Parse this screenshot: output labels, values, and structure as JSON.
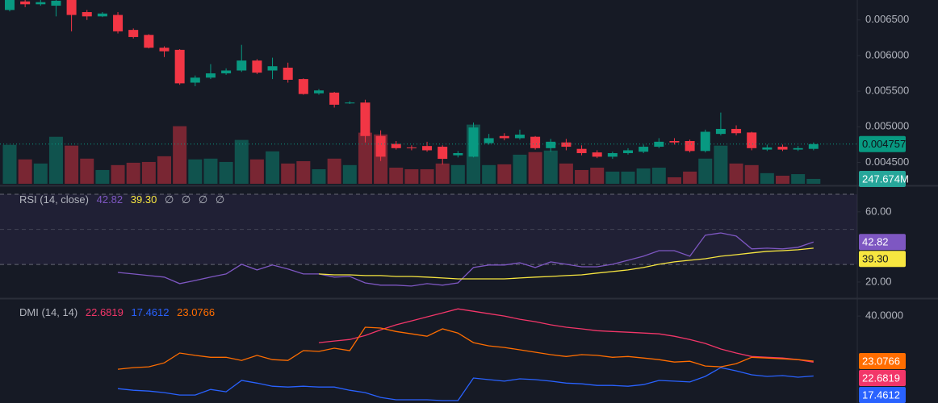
{
  "chart_data": [
    {
      "type": "candlestick",
      "up_color": "#089981",
      "down_color": "#f23645",
      "ylim": [
        0.0042,
        0.00678
      ],
      "yticks": [
        {
          "value": 0.0065,
          "label": "0.006500"
        },
        {
          "value": 0.006,
          "label": "0.006000"
        },
        {
          "value": 0.0055,
          "label": "0.005500"
        },
        {
          "value": 0.005,
          "label": "0.005000"
        },
        {
          "value": 0.0045,
          "label": "0.004500"
        }
      ],
      "open": [
        0.00664,
        0.00676,
        0.00672,
        0.0067,
        0.00678,
        0.00661,
        0.00655,
        0.00657,
        0.00636,
        0.00629,
        0.00611,
        0.00608,
        0.00562,
        0.00569,
        0.00575,
        0.00579,
        0.00593,
        0.00579,
        0.00583,
        0.00567,
        0.00547,
        0.00548,
        0.00533,
        0.00534,
        0.00487,
        0.00476,
        0.00471,
        0.00473,
        0.00472,
        0.0046,
        0.00458,
        0.00477,
        0.00487,
        0.00484,
        0.00486,
        0.0047,
        0.00478,
        0.00469,
        0.00464,
        0.00458,
        0.00463,
        0.00465,
        0.00472,
        0.0048,
        0.0048,
        0.00466,
        0.0049,
        0.00497,
        0.00492,
        0.00468,
        0.00472,
        0.00468,
        0.00469
      ],
      "high": [
        0.00678,
        0.00678,
        0.00678,
        0.00678,
        0.00678,
        0.00664,
        0.00661,
        0.00661,
        0.00638,
        0.0063,
        0.00613,
        0.00609,
        0.00572,
        0.00588,
        0.00582,
        0.00615,
        0.00595,
        0.00597,
        0.0059,
        0.00568,
        0.00553,
        0.00549,
        0.00536,
        0.00538,
        0.00495,
        0.0048,
        0.00474,
        0.00479,
        0.00474,
        0.00466,
        0.00506,
        0.0049,
        0.00491,
        0.00496,
        0.00487,
        0.00483,
        0.00483,
        0.00474,
        0.00467,
        0.00465,
        0.0047,
        0.00475,
        0.00484,
        0.00484,
        0.00482,
        0.00496,
        0.0052,
        0.00502,
        0.00493,
        0.00475,
        0.00475,
        0.00473,
        0.00478
      ],
      "low": [
        0.00662,
        0.00668,
        0.0067,
        0.00655,
        0.00634,
        0.0065,
        0.00654,
        0.00631,
        0.00624,
        0.0061,
        0.00598,
        0.00559,
        0.00557,
        0.00567,
        0.00573,
        0.00577,
        0.00574,
        0.00567,
        0.00562,
        0.00545,
        0.00545,
        0.00527,
        0.00532,
        0.00478,
        0.00452,
        0.00468,
        0.00467,
        0.00465,
        0.00447,
        0.00457,
        0.00457,
        0.00475,
        0.00481,
        0.00482,
        0.00468,
        0.00465,
        0.00467,
        0.0046,
        0.00456,
        0.00455,
        0.00461,
        0.00463,
        0.0047,
        0.00475,
        0.00464,
        0.00464,
        0.00488,
        0.00488,
        0.00467,
        0.00466,
        0.00466,
        0.00466,
        0.00467
      ],
      "close": [
        0.00678,
        0.00672,
        0.00675,
        0.00677,
        0.00657,
        0.00655,
        0.00659,
        0.00634,
        0.00626,
        0.00611,
        0.00606,
        0.00561,
        0.00569,
        0.00575,
        0.00579,
        0.00593,
        0.00576,
        0.00585,
        0.00566,
        0.00546,
        0.00551,
        0.00531,
        0.00534,
        0.00487,
        0.00458,
        0.0047,
        0.0047,
        0.00467,
        0.00455,
        0.00463,
        0.00499,
        0.00484,
        0.00484,
        0.00489,
        0.0047,
        0.00479,
        0.00472,
        0.00463,
        0.00458,
        0.00463,
        0.00467,
        0.00472,
        0.00479,
        0.00478,
        0.00466,
        0.00493,
        0.00497,
        0.00491,
        0.0047,
        0.00471,
        0.00468,
        0.0047,
        0.004757
      ],
      "volume": {
        "vlim": [
          0,
          9350
        ],
        "badge_color": "#26a69a",
        "values": [
          1980,
          1240,
          1030,
          2390,
          1940,
          1280,
          700,
          950,
          1070,
          1110,
          1400,
          2930,
          1240,
          1280,
          1110,
          2230,
          1240,
          1650,
          1030,
          1150,
          740,
          1280,
          950,
          2600,
          2510,
          820,
          740,
          740,
          1030,
          950,
          3010,
          950,
          990,
          1480,
          1610,
          1690,
          1030,
          700,
          820,
          620,
          620,
          780,
          820,
          330,
          620,
          1280,
          1940,
          1030,
          950,
          540,
          410,
          490,
          247.674
        ],
        "value_labels": [
          null,
          null,
          null,
          null,
          null,
          null,
          null,
          null,
          null,
          null,
          null,
          null,
          null,
          null,
          null,
          null,
          null,
          null,
          null,
          null,
          null,
          null,
          null,
          null,
          null,
          null,
          null,
          null,
          null,
          null,
          null,
          null,
          null,
          null,
          null,
          null,
          null,
          null,
          null,
          null,
          null,
          null,
          null,
          null,
          null,
          null,
          null,
          null,
          null,
          null,
          null,
          null,
          "247.674M"
        ]
      }
    },
    {
      "type": "line",
      "title": "RSI (14, close)",
      "ylim": [
        11.7,
        73.7
      ],
      "yticks": [
        {
          "value": 60,
          "label": "60.00"
        },
        {
          "value": 20,
          "label": "20.00"
        }
      ],
      "band_lines": [
        70,
        50,
        30
      ],
      "band_color": "#7e57c2",
      "placeholders": [
        "∅",
        "∅",
        "∅",
        "∅"
      ],
      "series": [
        {
          "color": "#7e57c2",
          "values": [
            null,
            null,
            null,
            null,
            null,
            null,
            null,
            25.5,
            24.6,
            23.7,
            22.8,
            19.1,
            20.9,
            22.8,
            24.6,
            30.1,
            26.9,
            29.7,
            27.4,
            24.6,
            24.6,
            22.8,
            23.2,
            19.5,
            18.2,
            18.2,
            17.7,
            19.1,
            18.2,
            19.5,
            28.3,
            29.7,
            29.7,
            31.0,
            28.3,
            31.5,
            30.1,
            28.7,
            28.7,
            30.1,
            32.4,
            34.7,
            37.9,
            37.9,
            34.7,
            46.7,
            48.0,
            46.2,
            38.9,
            39.3,
            38.9,
            39.8,
            42.82
          ]
        },
        {
          "color": "#f7e640",
          "values": [
            null,
            null,
            null,
            null,
            null,
            null,
            null,
            null,
            null,
            null,
            null,
            null,
            null,
            null,
            null,
            null,
            null,
            null,
            null,
            null,
            24.6,
            24.1,
            24.1,
            23.7,
            23.7,
            23.2,
            23.2,
            22.8,
            22.3,
            21.8,
            21.8,
            21.8,
            21.8,
            22.3,
            22.8,
            23.2,
            23.7,
            24.1,
            25.1,
            26.0,
            26.9,
            28.3,
            30.1,
            31.5,
            32.4,
            33.3,
            34.7,
            35.6,
            36.6,
            37.5,
            37.9,
            38.4,
            39.3
          ],
          "value_labels": [
            null,
            null,
            null,
            null,
            null,
            null,
            null,
            null,
            null,
            null,
            null,
            null,
            null,
            null,
            null,
            null,
            null,
            null,
            null,
            null,
            null,
            null,
            null,
            null,
            null,
            null,
            null,
            null,
            null,
            null,
            null,
            null,
            null,
            null,
            null,
            null,
            null,
            null,
            null,
            null,
            null,
            null,
            null,
            null,
            null,
            null,
            null,
            null,
            null,
            null,
            null,
            null,
            "39.30"
          ]
        }
      ]
    },
    {
      "type": "line",
      "title": "DMI (14, 14)",
      "ylim": [
        7.3,
        46.1
      ],
      "yticks": [
        {
          "value": 40,
          "label": "40.0000"
        }
      ],
      "series": [
        {
          "color": "#f23669",
          "values": [
            null,
            null,
            null,
            null,
            null,
            null,
            null,
            null,
            null,
            null,
            null,
            null,
            null,
            null,
            null,
            null,
            null,
            null,
            null,
            null,
            30.0,
            30.6,
            31.2,
            32.7,
            34.8,
            36.7,
            38.2,
            39.7,
            41.2,
            42.7,
            41.8,
            40.9,
            40.0,
            38.8,
            37.9,
            36.7,
            35.8,
            35.2,
            34.5,
            34.2,
            33.9,
            33.6,
            33.3,
            32.4,
            31.2,
            29.7,
            27.6,
            26.1,
            24.8,
            24.5,
            24.2,
            23.6,
            22.6819
          ]
        },
        {
          "color": "#2962ff",
          "values": [
            null,
            null,
            null,
            null,
            null,
            null,
            null,
            12.7,
            12.1,
            11.8,
            11.2,
            10.3,
            10.3,
            12.4,
            11.5,
            15.8,
            14.8,
            13.6,
            13.3,
            13.6,
            13.3,
            13.3,
            12.1,
            11.2,
            9.4,
            8.5,
            8.5,
            8.5,
            8.2,
            8.2,
            16.7,
            16.1,
            15.5,
            16.4,
            16.1,
            15.5,
            14.8,
            14.5,
            13.9,
            13.9,
            13.6,
            14.2,
            15.8,
            15.5,
            15.2,
            17.3,
            20.6,
            19.4,
            17.9,
            17.3,
            17.6,
            17.0,
            17.4612
          ]
        },
        {
          "color": "#ff6d00",
          "values": [
            null,
            null,
            null,
            null,
            null,
            null,
            null,
            20.0,
            20.6,
            20.9,
            22.4,
            26.1,
            25.2,
            24.5,
            24.5,
            23.3,
            25.2,
            23.6,
            23.3,
            27.0,
            26.7,
            27.9,
            27.0,
            35.8,
            35.5,
            34.2,
            33.3,
            32.4,
            35.2,
            33.6,
            30.0,
            28.8,
            28.2,
            27.3,
            26.4,
            25.5,
            24.8,
            25.5,
            25.2,
            24.5,
            24.8,
            24.2,
            23.6,
            22.7,
            23.0,
            21.2,
            20.9,
            22.1,
            24.5,
            24.2,
            23.9,
            23.6,
            23.0766
          ]
        }
      ]
    }
  ]
}
